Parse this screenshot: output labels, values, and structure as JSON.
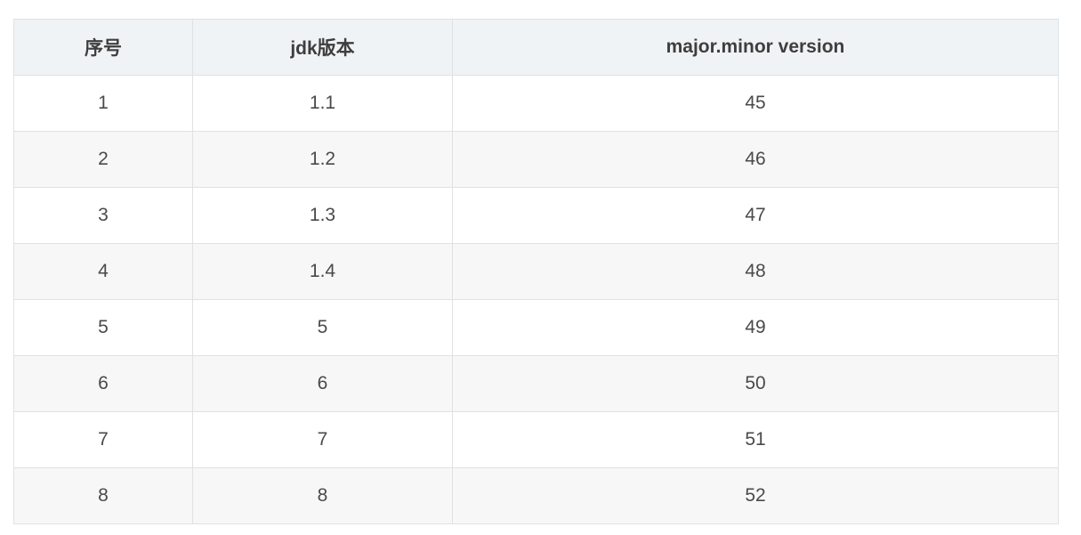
{
  "table": {
    "headers": [
      "序号",
      "jdk版本",
      "major.minor version"
    ],
    "rows": [
      [
        "1",
        "1.1",
        "45"
      ],
      [
        "2",
        "1.2",
        "46"
      ],
      [
        "3",
        "1.3",
        "47"
      ],
      [
        "4",
        "1.4",
        "48"
      ],
      [
        "5",
        "5",
        "49"
      ],
      [
        "6",
        "6",
        "50"
      ],
      [
        "7",
        "7",
        "51"
      ],
      [
        "8",
        "8",
        "52"
      ]
    ]
  }
}
